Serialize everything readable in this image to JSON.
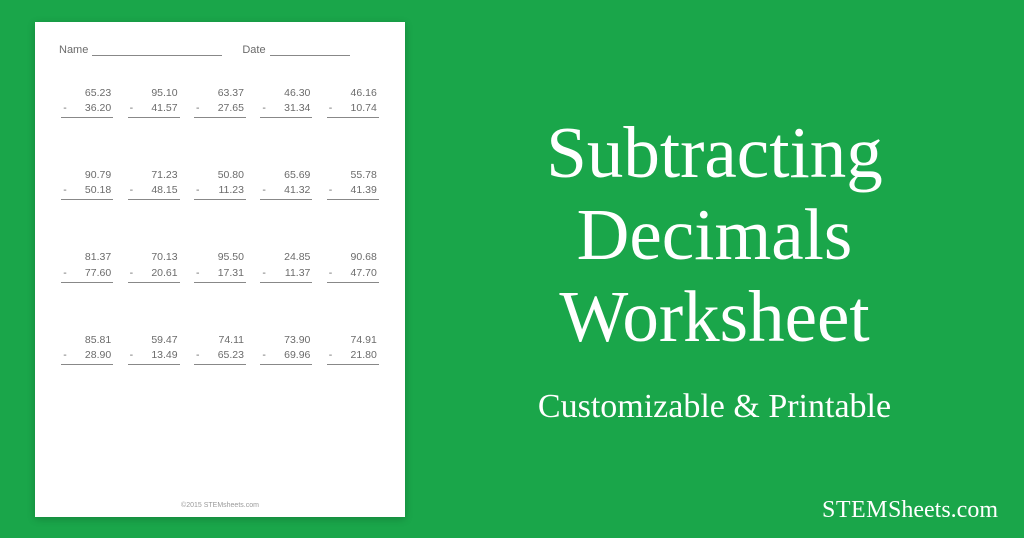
{
  "background_color": "#1aa64a",
  "worksheet": {
    "name_label": "Name",
    "date_label": "Date",
    "footer": "©2015 STEMsheets.com",
    "text_color": "#6b6b6b",
    "line_color": "#888888",
    "background_color": "#ffffff",
    "font_family": "Century Gothic",
    "problem_fontsize_pt": 8,
    "header_fontsize_pt": 9,
    "grid": {
      "rows": 4,
      "cols": 5
    },
    "operator": "-",
    "problems": [
      {
        "minuend": "65.23",
        "subtrahend": "36.20"
      },
      {
        "minuend": "95.10",
        "subtrahend": "41.57"
      },
      {
        "minuend": "63.37",
        "subtrahend": "27.65"
      },
      {
        "minuend": "46.30",
        "subtrahend": "31.34"
      },
      {
        "minuend": "46.16",
        "subtrahend": "10.74"
      },
      {
        "minuend": "90.79",
        "subtrahend": "50.18"
      },
      {
        "minuend": "71.23",
        "subtrahend": "48.15"
      },
      {
        "minuend": "50.80",
        "subtrahend": "11.23"
      },
      {
        "minuend": "65.69",
        "subtrahend": "41.32"
      },
      {
        "minuend": "55.78",
        "subtrahend": "41.39"
      },
      {
        "minuend": "81.37",
        "subtrahend": "77.60"
      },
      {
        "minuend": "70.13",
        "subtrahend": "20.61"
      },
      {
        "minuend": "95.50",
        "subtrahend": "17.31"
      },
      {
        "minuend": "24.85",
        "subtrahend": "11.37"
      },
      {
        "minuend": "90.68",
        "subtrahend": "47.70"
      },
      {
        "minuend": "85.81",
        "subtrahend": "28.90"
      },
      {
        "minuend": "59.47",
        "subtrahend": "13.49"
      },
      {
        "minuend": "74.11",
        "subtrahend": "65.23"
      },
      {
        "minuend": "73.90",
        "subtrahend": "69.96"
      },
      {
        "minuend": "74.91",
        "subtrahend": "21.80"
      }
    ]
  },
  "right_panel": {
    "title_line1": "Subtracting",
    "title_line2": "Decimals",
    "title_line3": "Worksheet",
    "subtitle": "Customizable & Printable",
    "title_fontsize_pt": 55,
    "subtitle_fontsize_pt": 26,
    "text_color": "#ffffff",
    "font_family": "Palatino"
  },
  "brand": {
    "stem": "STEM",
    "sheets": "Sheets",
    "tld": ".com",
    "text_color": "#ffffff",
    "fontsize_pt": 18
  }
}
